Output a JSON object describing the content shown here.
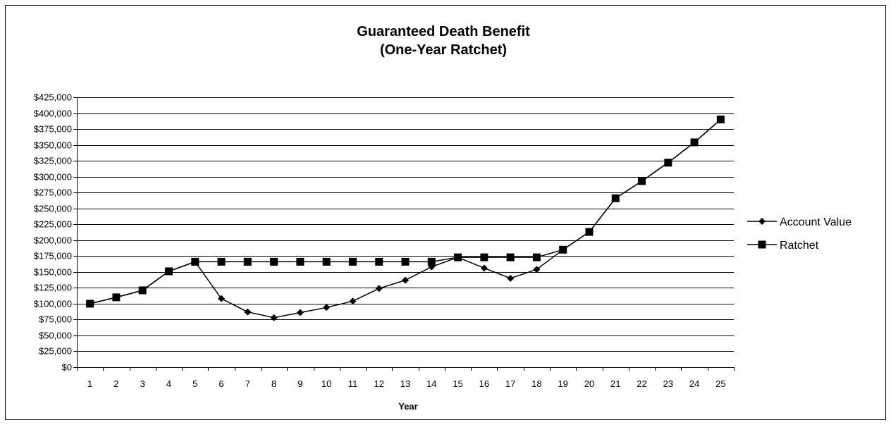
{
  "chart_data": {
    "type": "line",
    "title": [
      "Guaranteed Death Benefit",
      "(One-Year Ratchet)"
    ],
    "xlabel": "Year",
    "ylabel": "",
    "categories": [
      "1",
      "2",
      "3",
      "4",
      "5",
      "6",
      "7",
      "8",
      "9",
      "10",
      "11",
      "12",
      "13",
      "14",
      "15",
      "16",
      "17",
      "18",
      "19",
      "20",
      "21",
      "22",
      "23",
      "24",
      "25"
    ],
    "ylim": [
      0,
      425000
    ],
    "ytick_step": 25000,
    "yticks": [
      "$0",
      "$25,000",
      "$50,000",
      "$75,000",
      "$100,000",
      "$125,000",
      "$150,000",
      "$175,000",
      "$200,000",
      "$225,000",
      "$250,000",
      "$275,000",
      "$300,000",
      "$325,000",
      "$350,000",
      "$375,000",
      "$400,000",
      "$425,000"
    ],
    "grid": true,
    "legend_position": "right",
    "series": [
      {
        "name": "Account Value",
        "marker": "diamond",
        "color": "#000000",
        "values": [
          100000,
          110000,
          121000,
          151000,
          166000,
          108000,
          87000,
          78000,
          86000,
          94000,
          104000,
          124000,
          137000,
          158000,
          173000,
          156000,
          140000,
          154000,
          185000,
          213000,
          266000,
          293000,
          322000,
          354000,
          390000
        ]
      },
      {
        "name": "Ratchet",
        "marker": "square",
        "color": "#000000",
        "values": [
          100000,
          110000,
          121000,
          151000,
          166000,
          166000,
          166000,
          166000,
          166000,
          166000,
          166000,
          166000,
          166000,
          166000,
          173000,
          173000,
          173000,
          173000,
          185000,
          213000,
          266000,
          293000,
          322000,
          354000,
          390000
        ]
      }
    ]
  }
}
